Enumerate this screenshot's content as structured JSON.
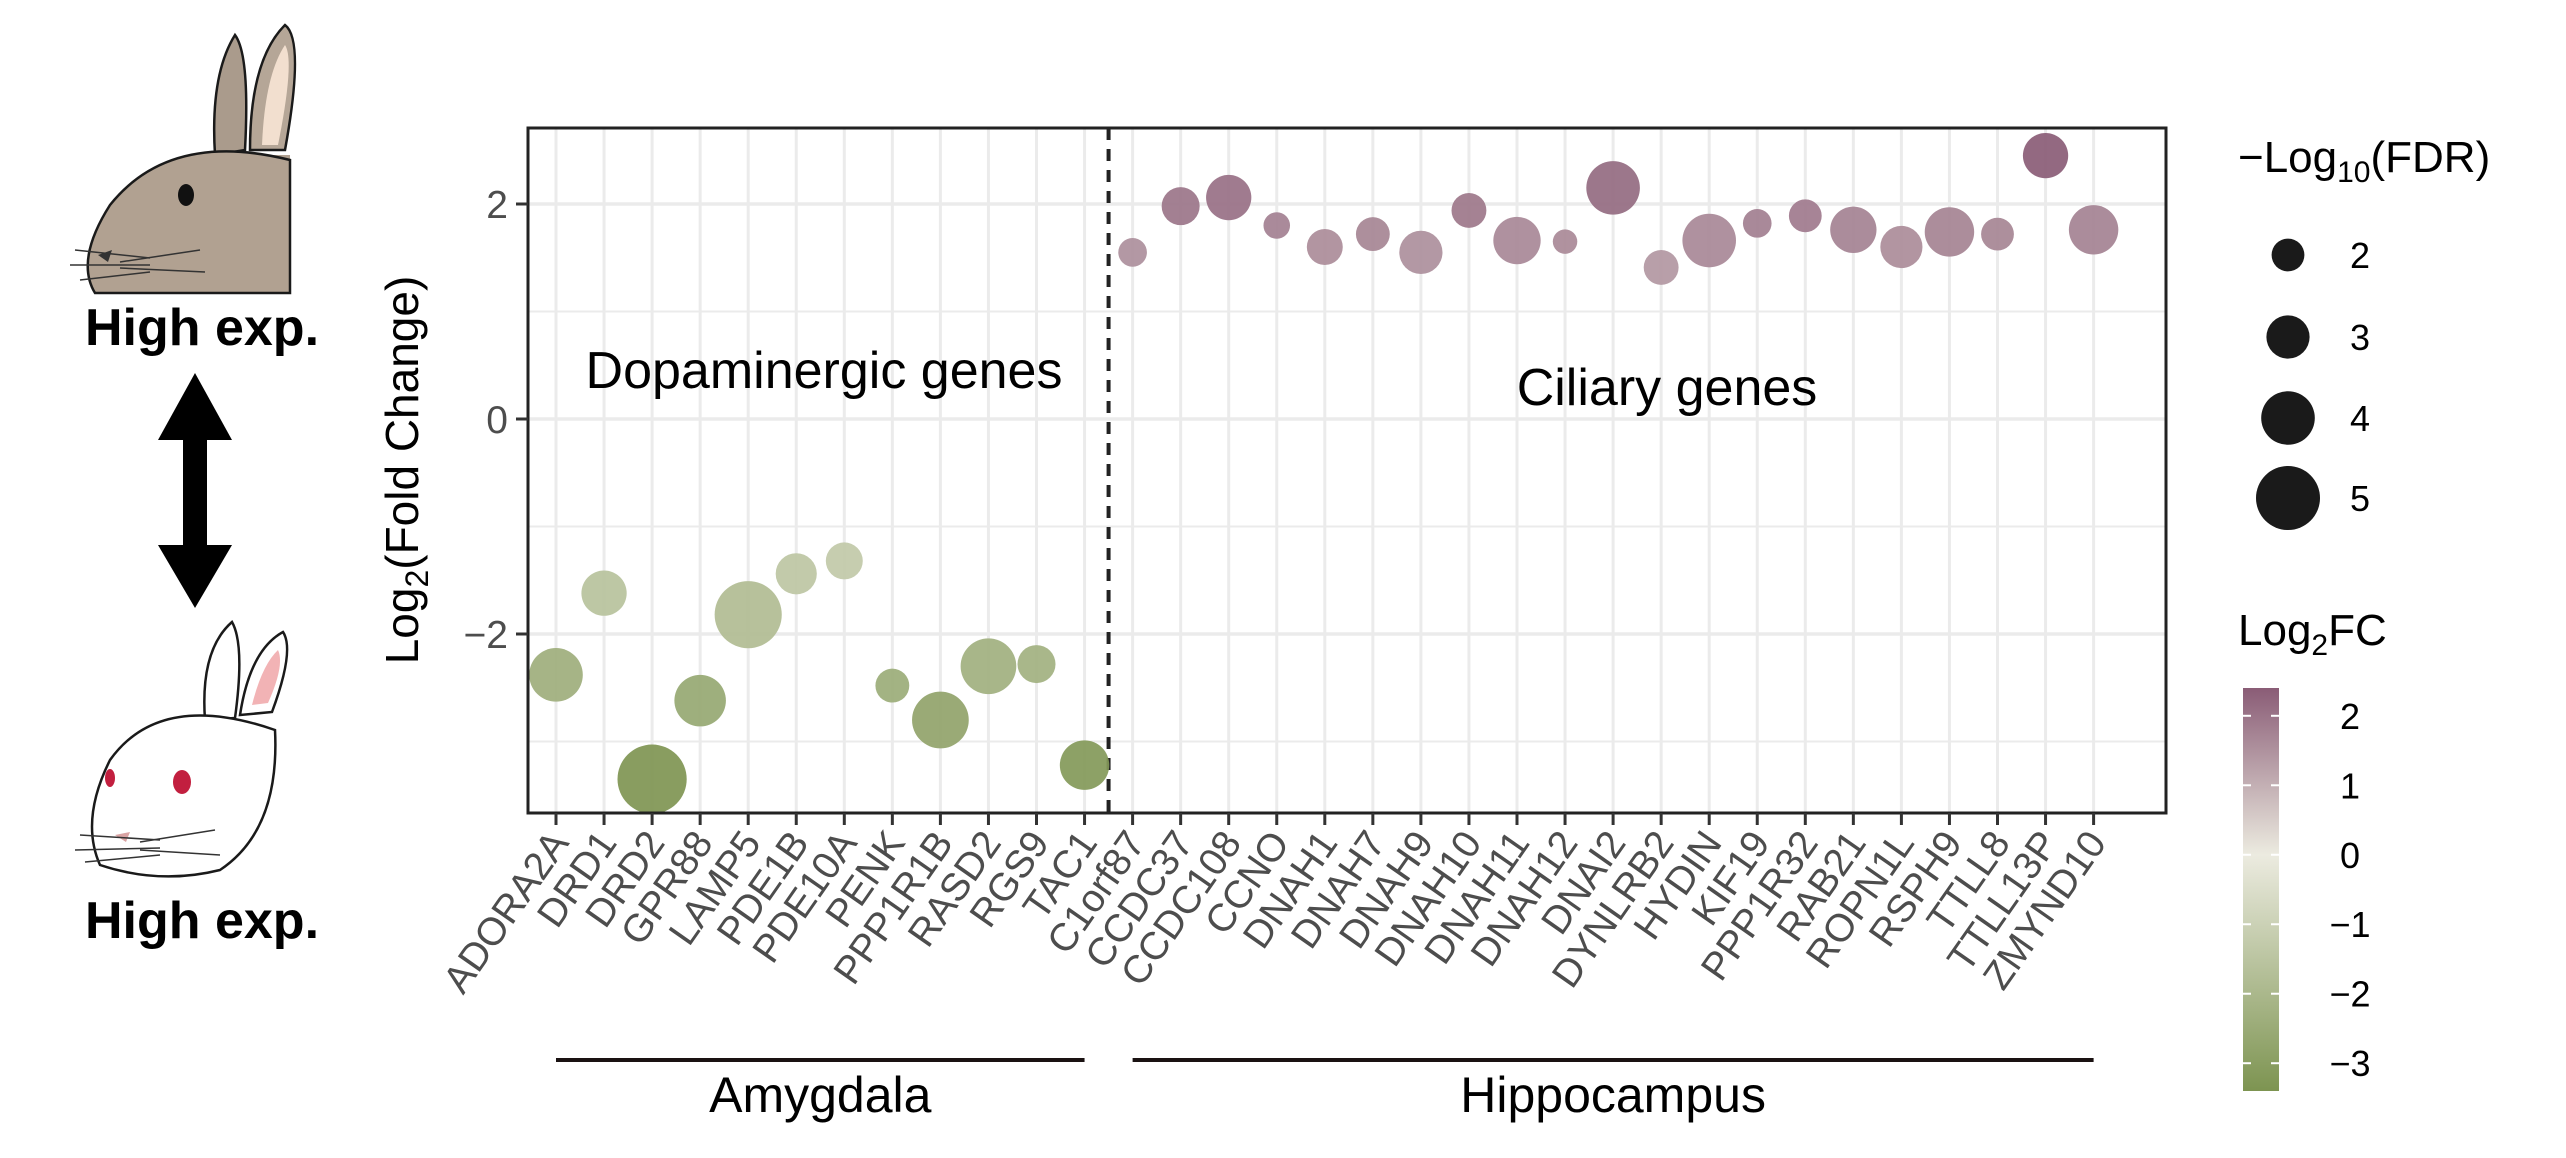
{
  "chart_data": {
    "type": "scatter",
    "ylabel_main": "Log",
    "ylabel_sub": "2",
    "ylabel_rest": "(Fold Change)",
    "ylim": [
      -3.75,
      2.7
    ],
    "yticks": [
      2,
      0,
      -2
    ],
    "ytick_labels": [
      "2",
      "0",
      "−2"
    ],
    "grid": true,
    "annotations": {
      "dopaminergic": "Dopaminergic genes",
      "ciliary": "Ciliary genes"
    },
    "groups": [
      {
        "label": "Amygdala",
        "points": [
          {
            "gene": "ADORA2A",
            "log2fc": -2.38,
            "neglog10fdr": 4.0
          },
          {
            "gene": "DRD1",
            "log2fc": -1.62,
            "neglog10fdr": 3.2
          },
          {
            "gene": "DRD2",
            "log2fc": -3.35,
            "neglog10fdr": 5.5
          },
          {
            "gene": "GPR88",
            "log2fc": -2.62,
            "neglog10fdr": 3.8
          },
          {
            "gene": "LAMP5",
            "log2fc": -1.82,
            "neglog10fdr": 5.3
          },
          {
            "gene": "PDE1B",
            "log2fc": -1.44,
            "neglog10fdr": 2.8
          },
          {
            "gene": "PDE10A",
            "log2fc": -1.32,
            "neglog10fdr": 2.4
          },
          {
            "gene": "PENK",
            "log2fc": -2.48,
            "neglog10fdr": 2.1
          },
          {
            "gene": "PPP1R1B",
            "log2fc": -2.8,
            "neglog10fdr": 4.3
          },
          {
            "gene": "RASD2",
            "log2fc": -2.3,
            "neglog10fdr": 4.2
          },
          {
            "gene": "RGS9",
            "log2fc": -2.28,
            "neglog10fdr": 2.5
          },
          {
            "gene": "TAC1",
            "log2fc": -3.22,
            "neglog10fdr": 3.6
          }
        ]
      },
      {
        "label": "Hippocampus",
        "points": [
          {
            "gene": "C1orf87",
            "log2fc": 1.55,
            "neglog10fdr": 1.6
          },
          {
            "gene": "CCDC37",
            "log2fc": 1.98,
            "neglog10fdr": 2.5
          },
          {
            "gene": "CCDC108",
            "log2fc": 2.06,
            "neglog10fdr": 3.2
          },
          {
            "gene": "CCNO",
            "log2fc": 1.8,
            "neglog10fdr": 1.4
          },
          {
            "gene": "DNAH1",
            "log2fc": 1.6,
            "neglog10fdr": 2.3
          },
          {
            "gene": "DNAH7",
            "log2fc": 1.72,
            "neglog10fdr": 2.1
          },
          {
            "gene": "DNAH9",
            "log2fc": 1.55,
            "neglog10fdr": 3.0
          },
          {
            "gene": "DNAH10",
            "log2fc": 1.94,
            "neglog10fdr": 2.2
          },
          {
            "gene": "DNAH11",
            "log2fc": 1.66,
            "neglog10fdr": 3.4
          },
          {
            "gene": "DNAH12",
            "log2fc": 1.65,
            "neglog10fdr": 1.2
          },
          {
            "gene": "DNAI2",
            "log2fc": 2.15,
            "neglog10fdr": 4.0
          },
          {
            "gene": "DYNLRB2",
            "log2fc": 1.41,
            "neglog10fdr": 2.2
          },
          {
            "gene": "HYDIN",
            "log2fc": 1.66,
            "neglog10fdr": 4.0
          },
          {
            "gene": "KIF19",
            "log2fc": 1.82,
            "neglog10fdr": 1.6
          },
          {
            "gene": "PPP1R32",
            "log2fc": 1.89,
            "neglog10fdr": 2.0
          },
          {
            "gene": "RAB21",
            "log2fc": 1.76,
            "neglog10fdr": 3.3
          },
          {
            "gene": "ROPN1L",
            "log2fc": 1.6,
            "neglog10fdr": 2.9
          },
          {
            "gene": "RSPH9",
            "log2fc": 1.74,
            "neglog10fdr": 3.6
          },
          {
            "gene": "TTLL8",
            "log2fc": 1.72,
            "neglog10fdr": 2.0
          },
          {
            "gene": "TTLL13P",
            "log2fc": 2.45,
            "neglog10fdr": 3.2
          },
          {
            "gene": "ZMYND10",
            "log2fc": 1.76,
            "neglog10fdr": 3.6
          }
        ]
      }
    ],
    "size_legend": {
      "title_prefix": "−Log",
      "title_sub": "10",
      "title_suffix": "(FDR)",
      "values": [
        2,
        3,
        4,
        5
      ],
      "labels": [
        "2",
        "3",
        "4",
        "5"
      ]
    },
    "color_legend": {
      "title_main": "Log",
      "title_sub": "2",
      "title_suffix": "FC",
      "range": [
        -3.4,
        2.4
      ],
      "ticks": [
        2,
        1,
        0,
        -1,
        -2,
        -3
      ],
      "tick_labels": [
        "2",
        "1",
        "0",
        "−1",
        "−2",
        "−3"
      ],
      "low_color": "#7d9451",
      "mid_color": "#ecebe0",
      "high_color": "#8a5c76"
    },
    "side_panel": {
      "top_label": "High exp.",
      "bottom_label": "High exp."
    }
  }
}
